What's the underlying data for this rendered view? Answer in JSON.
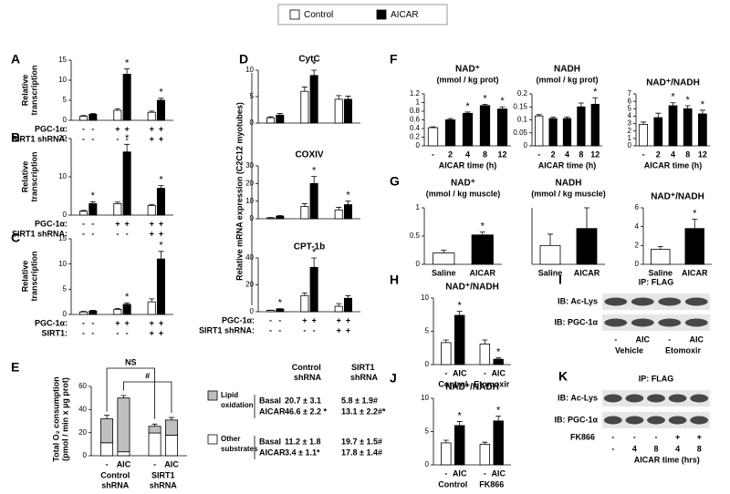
{
  "legend": [
    {
      "name": "Control",
      "color": "#ffffff"
    },
    {
      "name": "AICAR",
      "color": "#000000"
    }
  ],
  "chart_data": [
    {
      "type": "bar",
      "panel": "A",
      "ylabel": [
        "Relative",
        "transcription"
      ],
      "ylim": [
        0,
        15
      ],
      "yticks": [
        0,
        5,
        10,
        15
      ],
      "sig_mark": "*",
      "series": [
        {
          "color": "#ffffff",
          "values": [
            1,
            2.5,
            2
          ],
          "errors": [
            0.2,
            0.4,
            0.3
          ],
          "significant": [
            false,
            false,
            false
          ]
        },
        {
          "color": "#000000",
          "values": [
            1.5,
            11.5,
            5
          ],
          "errors": [
            0.2,
            1.3,
            0.5
          ],
          "significant": [
            false,
            true,
            true
          ]
        }
      ],
      "rows": [
        {
          "label": "PGC-1α:",
          "values": [
            "-",
            "-",
            "+",
            "+",
            "+",
            "+"
          ]
        },
        {
          "label": "SIRT1 shRNA:",
          "values": [
            "-",
            "-",
            "-",
            "-",
            "+",
            "+"
          ]
        }
      ]
    },
    {
      "type": "bar",
      "panel": "B",
      "ylabel": [
        "Relative",
        "transcription"
      ],
      "ylim": [
        0,
        20
      ],
      "yticks": [
        0,
        10,
        20
      ],
      "sig_mark": "*",
      "series": [
        {
          "color": "#ffffff",
          "values": [
            1,
            3,
            2.5
          ],
          "errors": [
            0.2,
            0.4,
            0.3
          ],
          "significant": [
            false,
            false,
            false
          ]
        },
        {
          "color": "#000000",
          "values": [
            3,
            16.5,
            7
          ],
          "errors": [
            0.5,
            2,
            0.7
          ],
          "significant": [
            true,
            true,
            true
          ]
        }
      ],
      "rows": [
        {
          "label": "PGC-1α:",
          "values": [
            "-",
            "-",
            "+",
            "+",
            "+",
            "+"
          ]
        },
        {
          "label": "SIRT1 shRNA:",
          "values": [
            "-",
            "-",
            "-",
            "-",
            "+",
            "+"
          ]
        }
      ]
    },
    {
      "type": "bar",
      "panel": "C",
      "ylabel": [
        "Relative",
        "transcription"
      ],
      "ylim": [
        0,
        15
      ],
      "yticks": [
        0,
        5,
        10,
        15
      ],
      "sig_mark": "*",
      "series": [
        {
          "color": "#ffffff",
          "values": [
            0.5,
            1,
            2.5
          ],
          "errors": [
            0.1,
            0.2,
            0.6
          ],
          "significant": [
            false,
            false,
            false
          ]
        },
        {
          "color": "#000000",
          "values": [
            0.7,
            2,
            11
          ],
          "errors": [
            0.1,
            0.3,
            1.5
          ],
          "significant": [
            false,
            true,
            true
          ]
        }
      ],
      "rows": [
        {
          "label": "PGC-1α:",
          "values": [
            "-",
            "-",
            "+",
            "+",
            "+",
            "+"
          ]
        },
        {
          "label": "SIRT1:",
          "values": [
            "-",
            "-",
            "-",
            "-",
            "+",
            "+"
          ]
        }
      ]
    },
    {
      "type": "bar",
      "panel": "D",
      "title": "CytC",
      "ylim": [
        0,
        10
      ],
      "yticks": [
        0,
        5,
        10
      ],
      "sig_mark": "*",
      "series": [
        {
          "color": "#ffffff",
          "values": [
            1,
            6,
            4.5
          ],
          "errors": [
            0.2,
            0.8,
            0.7
          ],
          "significant": [
            false,
            false,
            false
          ]
        },
        {
          "color": "#000000",
          "values": [
            1.5,
            9,
            4.5
          ],
          "errors": [
            0.3,
            1,
            0.6
          ],
          "significant": [
            false,
            true,
            false
          ]
        }
      ]
    },
    {
      "type": "bar",
      "title": "COXIV",
      "ylabel": [
        "Relative mRNA expression (C2C12 myotubes)"
      ],
      "ylim": [
        0,
        30
      ],
      "yticks": [
        0,
        10,
        20,
        30
      ],
      "sig_mark": "*",
      "series": [
        {
          "color": "#ffffff",
          "values": [
            0.5,
            7,
            5
          ],
          "errors": [
            0.2,
            1.5,
            1.5
          ],
          "significant": [
            false,
            false,
            false
          ]
        },
        {
          "color": "#000000",
          "values": [
            1.5,
            20,
            8
          ],
          "errors": [
            0.3,
            4,
            2
          ],
          "significant": [
            false,
            true,
            true
          ]
        }
      ]
    },
    {
      "type": "bar",
      "title": "CPT-1b",
      "ylim": [
        0,
        40
      ],
      "yticks": [
        0,
        20,
        40
      ],
      "sig_mark": "*",
      "series": [
        {
          "color": "#ffffff",
          "values": [
            1,
            12,
            4
          ],
          "errors": [
            0.2,
            2,
            2
          ],
          "significant": [
            false,
            false,
            false
          ]
        },
        {
          "color": "#000000",
          "values": [
            2,
            33,
            10
          ],
          "errors": [
            0.3,
            7,
            2
          ],
          "significant": [
            true,
            true,
            false
          ]
        }
      ],
      "rows": [
        {
          "label": "PGC-1α:",
          "values": [
            "-",
            "-",
            "+",
            "+",
            "+",
            "+"
          ]
        },
        {
          "label": "SIRT1 shRNA:",
          "values": [
            "-",
            "-",
            "-",
            "-",
            "+",
            "+"
          ]
        }
      ]
    },
    {
      "type": "stacked_bar",
      "panel": "E",
      "ylabel": [
        "Total O₂ consumption",
        "(pmol / min x µg prot)"
      ],
      "ylim": [
        0,
        60
      ],
      "yticks": [
        0,
        20,
        40,
        60
      ],
      "categories": [
        "-",
        "AIC",
        "-",
        "AIC"
      ],
      "group_labels": [
        [
          "Control",
          "shRNA"
        ],
        [
          "SIRT1",
          "shRNA"
        ]
      ],
      "series": [
        {
          "name": "Other substrates",
          "color": "#ffffff",
          "values": [
            11.2,
            3.4,
            19.7,
            17.8
          ]
        },
        {
          "name": "Lipid oxidation",
          "color": "#bfbfbf",
          "values": [
            20.7,
            46.6,
            5.8,
            13.1
          ],
          "errors": [
            3.1,
            2.2,
            1.9,
            2.2
          ]
        }
      ],
      "brackets": [
        "NS",
        "#"
      ]
    },
    {
      "type": "bar",
      "panel": "F",
      "title": "NAD⁺",
      "subtitle": "(mmol / kg prot)",
      "xlabel": "AICAR time (h)",
      "categories": [
        "-",
        "2",
        "4",
        "8",
        "12"
      ],
      "values": [
        0.42,
        0.6,
        0.75,
        0.93,
        0.85
      ],
      "errors": [
        0.02,
        0.03,
        0.03,
        0.03,
        0.05
      ],
      "colors": [
        "#ffffff",
        "#000000",
        "#000000",
        "#000000",
        "#000000"
      ],
      "significant": [
        false,
        false,
        true,
        true,
        true
      ],
      "sig_mark": "*",
      "ylim": [
        0,
        1.2
      ],
      "yticks": [
        0,
        0.2,
        0.4,
        0.6,
        0.8,
        1,
        1.2
      ]
    },
    {
      "type": "bar",
      "title": "NADH",
      "subtitle": "(mmol / kg prot)",
      "xlabel": "AICAR time (h)",
      "categories": [
        "-",
        "2",
        "4",
        "8",
        "12"
      ],
      "values": [
        0.115,
        0.105,
        0.105,
        0.15,
        0.16
      ],
      "errors": [
        0.005,
        0.005,
        0.006,
        0.015,
        0.025
      ],
      "colors": [
        "#ffffff",
        "#000000",
        "#000000",
        "#000000",
        "#000000"
      ],
      "significant": [
        false,
        false,
        false,
        false,
        true
      ],
      "sig_mark": "*",
      "ylim": [
        0,
        0.2
      ],
      "yticks": [
        0,
        0.05,
        0.1,
        0.15,
        0.2
      ]
    },
    {
      "type": "bar",
      "title": "NAD⁺/NADH",
      "xlabel": "AICAR time (h)",
      "categories": [
        "-",
        "2",
        "4",
        "8",
        "12"
      ],
      "values": [
        2.9,
        3.8,
        5.4,
        5,
        4.3
      ],
      "errors": [
        0.3,
        0.6,
        0.4,
        0.4,
        0.5
      ],
      "colors": [
        "#ffffff",
        "#000000",
        "#000000",
        "#000000",
        "#000000"
      ],
      "significant": [
        false,
        false,
        true,
        true,
        true
      ],
      "sig_mark": "*",
      "ylim": [
        0,
        7
      ],
      "yticks": [
        0,
        1,
        2,
        3,
        4,
        5,
        6,
        7
      ]
    },
    {
      "type": "bar",
      "panel": "G",
      "title": "NAD⁺",
      "subtitle": "(mmol / kg muscle)",
      "categories": [
        "Saline",
        "AICAR"
      ],
      "values": [
        0.2,
        0.52
      ],
      "errors": [
        0.05,
        0.05
      ],
      "colors": [
        "#ffffff",
        "#000000"
      ],
      "significant": [
        false,
        true
      ],
      "sig_mark": "*",
      "ylim": [
        0,
        1
      ],
      "yticks": [
        0,
        0.5,
        1
      ]
    },
    {
      "type": "bar",
      "title": "NADH",
      "subtitle": "(mmol / kg muscle)",
      "categories": [
        "Saline",
        "AICAR"
      ],
      "values": [
        0.1,
        0.19
      ],
      "errors": [
        0.06,
        0.11
      ],
      "colors": [
        "#ffffff",
        "#000000"
      ],
      "ylim": [
        0,
        0.3
      ]
    },
    {
      "type": "bar",
      "title": "NAD⁺/NADH",
      "categories": [
        "Saline",
        "AICAR"
      ],
      "values": [
        1.6,
        3.8
      ],
      "errors": [
        0.3,
        1
      ],
      "colors": [
        "#ffffff",
        "#000000"
      ],
      "significant": [
        false,
        true
      ],
      "sig_mark": "*",
      "ylim": [
        0,
        6
      ],
      "yticks": [
        0,
        2,
        4,
        6
      ]
    },
    {
      "type": "bar",
      "panel": "H",
      "title": "NAD⁺/NADH",
      "categories": [
        "-",
        "AIC",
        "-",
        "AIC"
      ],
      "group_labels": [
        "Control",
        "Etomoxir"
      ],
      "values": [
        3.3,
        7.4,
        3.1,
        0.8
      ],
      "errors": [
        0.4,
        0.6,
        0.6,
        0.2
      ],
      "colors": [
        "#ffffff",
        "#000000",
        "#ffffff",
        "#000000"
      ],
      "significant": [
        false,
        true,
        false,
        true
      ],
      "sig_mark": "*",
      "ylim": [
        0,
        10
      ],
      "yticks": [
        0,
        5,
        10
      ]
    },
    {
      "type": "bar",
      "panel": "J",
      "title": "NAD⁺/NADH",
      "categories": [
        "-",
        "AIC",
        "-",
        "AIC"
      ],
      "group_labels": [
        "Control",
        "FK866"
      ],
      "values": [
        3.3,
        5.9,
        3.1,
        6.6
      ],
      "errors": [
        0.4,
        0.6,
        0.3,
        0.7
      ],
      "colors": [
        "#ffffff",
        "#000000",
        "#ffffff",
        "#000000"
      ],
      "significant": [
        false,
        true,
        false,
        true
      ],
      "sig_mark": "*",
      "ylim": [
        0,
        10
      ],
      "yticks": [
        0,
        5,
        10
      ]
    }
  ],
  "table_e": {
    "columns": [
      "Control shRNA",
      "SIRT1 shRNA"
    ],
    "rows": [
      [
        "Basal",
        "20.7 ± 3.1",
        "5.8 ± 1.9#"
      ],
      [
        "AICAR",
        "46.6 ± 2.2 *",
        "13.1 ± 2.2#*"
      ],
      [
        "Basal",
        "11.2 ± 1.8",
        "19.7 ± 1.5#"
      ],
      [
        "AICAR",
        "3.4 ± 1.1*",
        "17.8 ± 1.4#"
      ]
    ]
  },
  "blots": [
    {
      "panel": "I",
      "title": "IP: FLAG",
      "rows": [
        "IB: Ac-Lys",
        "IB: PGC-1α"
      ],
      "lanes": [
        "-",
        "AIC",
        "-",
        "AIC"
      ],
      "groups": [
        "Vehicle",
        "Etomoxir"
      ]
    },
    {
      "panel": "K",
      "title": "IP: FLAG",
      "rows": [
        "IB: Ac-Lys",
        "IB: PGC-1α"
      ],
      "treatment": {
        "label": "FK866",
        "values": [
          "-",
          "-",
          "-",
          "+",
          "+"
        ]
      },
      "lanes": [
        "-",
        "4",
        "8",
        "4",
        "8"
      ],
      "xlabel": "AICAR time (hrs)"
    }
  ]
}
